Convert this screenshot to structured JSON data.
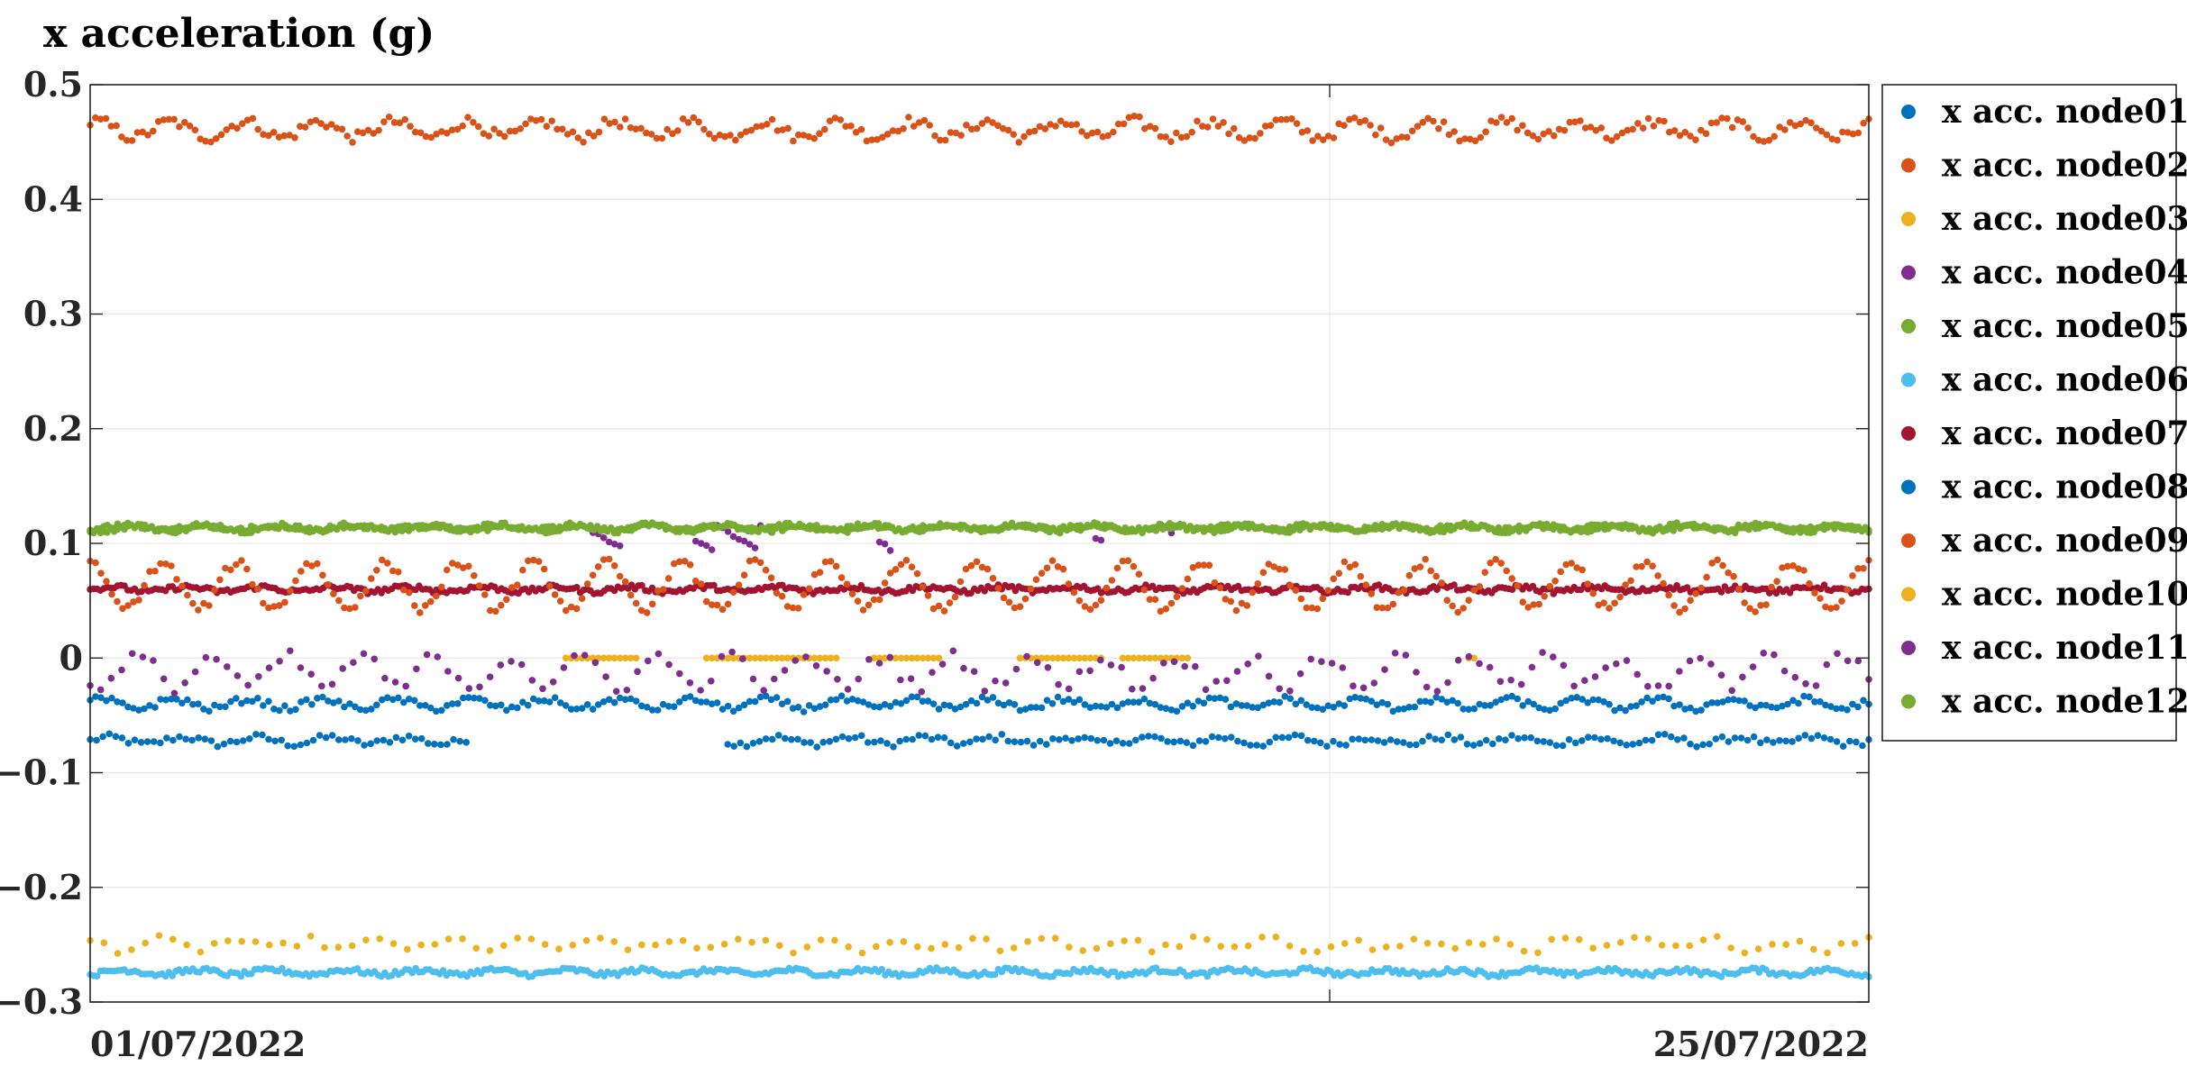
{
  "chart_data": {
    "type": "scatter",
    "title": "x acceleration (g)",
    "xlabel": "",
    "ylabel": "",
    "x_start": "01/07/2022",
    "x_end": "25/07/2022",
    "xticks": [
      "01/07/2022",
      "25/07/2022"
    ],
    "x_gridlines": [
      "20/07/2022"
    ],
    "ylim": [
      -0.3,
      0.5
    ],
    "yticks": [
      -0.3,
      -0.2,
      -0.1,
      0,
      0.1,
      0.2,
      0.3,
      0.4,
      0.5
    ],
    "ytick_labels": [
      "−0.3",
      "−0.2",
      "−0.1",
      "0",
      "0.1",
      "0.2",
      "0.3",
      "0.4",
      "0.5"
    ],
    "grid": true,
    "legend_position": "outside-right",
    "series": [
      {
        "name": "x acc. node01",
        "color": "#0072BD",
        "mean": -0.072,
        "amplitude": 0.003,
        "gaps": [
          [
            0.215,
            0.355
          ]
        ]
      },
      {
        "name": "x acc. node02",
        "color": "#D95319",
        "mean": 0.461,
        "amplitude": 0.007
      },
      {
        "name": "x acc. node03",
        "color": "#EDB120",
        "mean": -0.25,
        "amplitude": 0.004
      },
      {
        "name": "x acc. node04",
        "color": "#7E2F8E",
        "present_ranges": [
          [
            0.282,
            0.3
          ],
          [
            0.34,
            0.385
          ],
          [
            0.443,
            0.45
          ],
          [
            0.565,
            0.57
          ],
          [
            0.6,
            0.61
          ]
        ],
        "values_range": [
          0.095,
          0.118
        ]
      },
      {
        "name": "x acc. node05",
        "color": "#77AC30",
        "mean": 0.113,
        "amplitude": 0.002
      },
      {
        "name": "x acc. node06",
        "color": "#4DBEEE",
        "mean": -0.274,
        "amplitude": 0.002
      },
      {
        "name": "x acc. node07",
        "color": "#A2142F",
        "mean": 0.06,
        "amplitude": 0.002
      },
      {
        "name": "x acc. node08",
        "color": "#0072BD",
        "mean": -0.04,
        "amplitude": 0.004
      },
      {
        "name": "x acc. node09",
        "color": "#D95319",
        "mean": 0.063,
        "amplitude": 0.02
      },
      {
        "name": "x acc. node10",
        "color": "#EDB120",
        "mean": 0.0,
        "amplitude": 0.0,
        "present_ranges": [
          [
            0.265,
            0.31
          ],
          [
            0.345,
            0.42
          ],
          [
            0.44,
            0.48
          ],
          [
            0.52,
            0.57
          ],
          [
            0.58,
            0.62
          ],
          [
            0.775,
            0.78
          ]
        ]
      },
      {
        "name": "x acc. node11",
        "color": "#7E2F8E",
        "mean": -0.012,
        "amplitude": 0.013
      },
      {
        "name": "x acc. node12",
        "color": "#77AC30",
        "mean": 0.114,
        "amplitude": 0.002
      }
    ]
  }
}
